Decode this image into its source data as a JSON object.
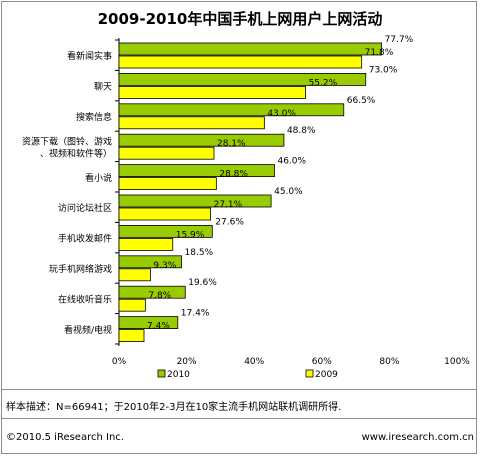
{
  "footer": {
    "note": "样本描述：N=66941；于2010年2-3月在10家主流手机网站联机调研所得.",
    "copyright": "©2010.5 iResearch Inc.",
    "website": "www.iresearch.com.cn"
  },
  "chart_data": {
    "type": "bar",
    "orientation": "horizontal",
    "title": "2009-2010年中国手机上网用户上网活动",
    "categories": [
      [
        "看新闻实事"
      ],
      [
        "聊天"
      ],
      [
        "搜索信息"
      ],
      [
        "资源下载（图铃、游戏",
        "、视频和软件等）"
      ],
      [
        "看小说"
      ],
      [
        "访问论坛社区"
      ],
      [
        "手机收发邮件"
      ],
      [
        "玩手机网络游戏"
      ],
      [
        "在线收听音乐"
      ],
      [
        "看视频/电视"
      ]
    ],
    "series": [
      {
        "name": "2010",
        "color": "#99cc00",
        "values": [
          77.7,
          73.0,
          66.5,
          48.8,
          46.0,
          45.0,
          27.6,
          18.5,
          19.6,
          17.4
        ]
      },
      {
        "name": "2009",
        "color": "#ffff00",
        "values": [
          71.8,
          55.2,
          43.0,
          28.1,
          28.8,
          27.1,
          15.9,
          9.3,
          7.8,
          7.4
        ]
      }
    ],
    "xlim": [
      0,
      100
    ],
    "xticks": [
      "0%",
      "20%",
      "40%",
      "60%",
      "80%",
      "100%"
    ],
    "legend_position": "bottom",
    "grid": false
  }
}
